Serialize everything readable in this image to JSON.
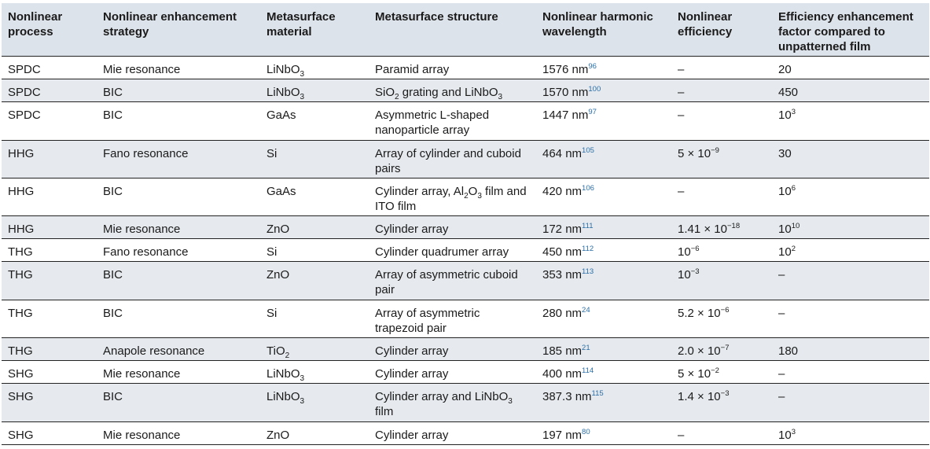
{
  "headers": [
    "Nonlinear process",
    "Nonlinear enhancement strategy",
    "Metasurface material",
    "Metasurface structure",
    "Nonlinear harmonic wavelength",
    "Nonlinear efficiency",
    "Efficiency enhancement factor compared to unpatterned film"
  ],
  "rows": [
    {
      "process": "SPDC",
      "strategy": "Mie resonance",
      "material": [
        [
          "LiNbO"
        ],
        [
          "3",
          "sub"
        ]
      ],
      "structure": [
        [
          "Paramid array"
        ]
      ],
      "wavelength": "1576 nm",
      "ref": "96",
      "efficiency": [
        [
          "–"
        ]
      ],
      "factor": [
        [
          "20"
        ]
      ]
    },
    {
      "process": "SPDC",
      "strategy": "BIC",
      "material": [
        [
          "LiNbO"
        ],
        [
          "3",
          "sub"
        ]
      ],
      "structure": [
        [
          "SiO"
        ],
        [
          "2",
          "sub"
        ],
        [
          " grating and LiNbO"
        ],
        [
          "3",
          "sub"
        ]
      ],
      "wavelength": "1570 nm",
      "ref": "100",
      "efficiency": [
        [
          "–"
        ]
      ],
      "factor": [
        [
          "450"
        ]
      ]
    },
    {
      "process": "SPDC",
      "strategy": "BIC",
      "material": [
        [
          "GaAs"
        ]
      ],
      "structure": [
        [
          "Asymmetric L-shaped nanoparticle array"
        ]
      ],
      "wavelength": "1447 nm",
      "ref": "97",
      "efficiency": [
        [
          "–"
        ]
      ],
      "factor": [
        [
          "10"
        ],
        [
          "3",
          "sup"
        ]
      ]
    },
    {
      "process": "HHG",
      "strategy": "Fano resonance",
      "material": [
        [
          "Si"
        ]
      ],
      "structure": [
        [
          "Array of cylinder and cuboid pairs"
        ]
      ],
      "wavelength": "464 nm",
      "ref": "105",
      "efficiency": [
        [
          "5 × 10"
        ],
        [
          "−9",
          "sup"
        ]
      ],
      "factor": [
        [
          "30"
        ]
      ]
    },
    {
      "process": "HHG",
      "strategy": "BIC",
      "material": [
        [
          "GaAs"
        ]
      ],
      "structure": [
        [
          "Cylinder array, Al"
        ],
        [
          "2",
          "sub"
        ],
        [
          "O"
        ],
        [
          "3",
          "sub"
        ],
        [
          " film and ITO film"
        ]
      ],
      "wavelength": "420 nm",
      "ref": "106",
      "efficiency": [
        [
          "–"
        ]
      ],
      "factor": [
        [
          "10"
        ],
        [
          "6",
          "sup"
        ]
      ]
    },
    {
      "process": "HHG",
      "strategy": "Mie resonance",
      "material": [
        [
          "ZnO"
        ]
      ],
      "structure": [
        [
          "Cylinder array"
        ]
      ],
      "wavelength": "172 nm",
      "ref": "111",
      "efficiency": [
        [
          "1.41 × 10"
        ],
        [
          "−18",
          "sup"
        ]
      ],
      "factor": [
        [
          "10"
        ],
        [
          "10",
          "sup"
        ]
      ]
    },
    {
      "process": "THG",
      "strategy": "Fano resonance",
      "material": [
        [
          "Si"
        ]
      ],
      "structure": [
        [
          "Cylinder quadrumer array"
        ]
      ],
      "wavelength": "450 nm",
      "ref": "112",
      "efficiency": [
        [
          "10"
        ],
        [
          "−6",
          "sup"
        ]
      ],
      "factor": [
        [
          "10"
        ],
        [
          "2",
          "sup"
        ]
      ]
    },
    {
      "process": "THG",
      "strategy": "BIC",
      "material": [
        [
          "ZnO"
        ]
      ],
      "structure": [
        [
          "Array of asymmetric cuboid pair"
        ]
      ],
      "wavelength": "353 nm",
      "ref": "113",
      "efficiency": [
        [
          "10"
        ],
        [
          "−3",
          "sup"
        ]
      ],
      "factor": [
        [
          "–"
        ]
      ]
    },
    {
      "process": "THG",
      "strategy": "BIC",
      "material": [
        [
          "Si"
        ]
      ],
      "structure": [
        [
          "Array of asymmetric trapezoid pair"
        ]
      ],
      "wavelength": "280 nm",
      "ref": "24",
      "efficiency": [
        [
          "5.2 × 10"
        ],
        [
          "−6",
          "sup"
        ]
      ],
      "factor": [
        [
          "–"
        ]
      ]
    },
    {
      "process": "THG",
      "strategy": "Anapole resonance",
      "material": [
        [
          "TiO"
        ],
        [
          "2",
          "sub"
        ]
      ],
      "structure": [
        [
          "Cylinder array"
        ]
      ],
      "wavelength": "185 nm",
      "ref": "21",
      "efficiency": [
        [
          "2.0 × 10"
        ],
        [
          "−7",
          "sup"
        ]
      ],
      "factor": [
        [
          "180"
        ]
      ]
    },
    {
      "process": "SHG",
      "strategy": "Mie resonance",
      "material": [
        [
          "LiNbO"
        ],
        [
          "3",
          "sub"
        ]
      ],
      "structure": [
        [
          "Cylinder array"
        ]
      ],
      "wavelength": "400 nm",
      "ref": "114",
      "efficiency": [
        [
          "5 × 10"
        ],
        [
          "−2",
          "sup"
        ]
      ],
      "factor": [
        [
          "–"
        ]
      ]
    },
    {
      "process": "SHG",
      "strategy": "BIC",
      "material": [
        [
          "LiNbO"
        ],
        [
          "3",
          "sub"
        ]
      ],
      "structure": [
        [
          "Cylinder array and LiNbO"
        ],
        [
          "3",
          "sub"
        ],
        [
          " film"
        ]
      ],
      "wavelength": "387.3 nm",
      "ref": "115",
      "efficiency": [
        [
          "1.4 × 10"
        ],
        [
          "−3",
          "sup"
        ]
      ],
      "factor": [
        [
          "–"
        ]
      ]
    },
    {
      "process": "SHG",
      "strategy": "Mie resonance",
      "material": [
        [
          "ZnO"
        ]
      ],
      "structure": [
        [
          "Cylinder array"
        ]
      ],
      "wavelength": "197 nm",
      "ref": "80",
      "efficiency": [
        [
          "–"
        ]
      ],
      "factor": [
        [
          "10"
        ],
        [
          "3",
          "sup"
        ]
      ]
    }
  ]
}
